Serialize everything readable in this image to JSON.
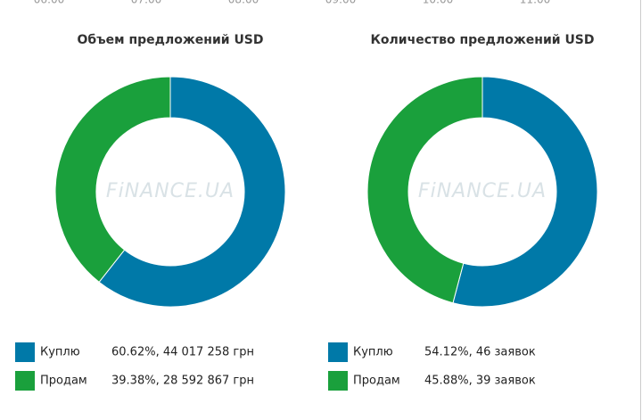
{
  "axis_fragment": [
    "06:00",
    "07:00",
    "08:00",
    "09:00",
    "10:00",
    "11:00"
  ],
  "chart_data": [
    {
      "type": "pie",
      "donut": true,
      "title": "Объем предложений USD",
      "watermark": "FiNANCE.UA",
      "categories": [
        "Куплю",
        "Продам"
      ],
      "values": [
        60.62,
        39.38
      ],
      "value_labels": [
        "60.62%, 44 017 258 грн",
        "39.38%, 28 592 867 грн"
      ],
      "colors": [
        "#0079a8",
        "#1aa03c"
      ]
    },
    {
      "type": "pie",
      "donut": true,
      "title": "Количество предложений USD",
      "watermark": "FiNANCE.UA",
      "categories": [
        "Куплю",
        "Продам"
      ],
      "values": [
        54.12,
        45.88
      ],
      "value_labels": [
        "54.12%, 46 заявок",
        "45.88%, 39 заявок"
      ],
      "colors": [
        "#0079a8",
        "#1aa03c"
      ]
    }
  ]
}
